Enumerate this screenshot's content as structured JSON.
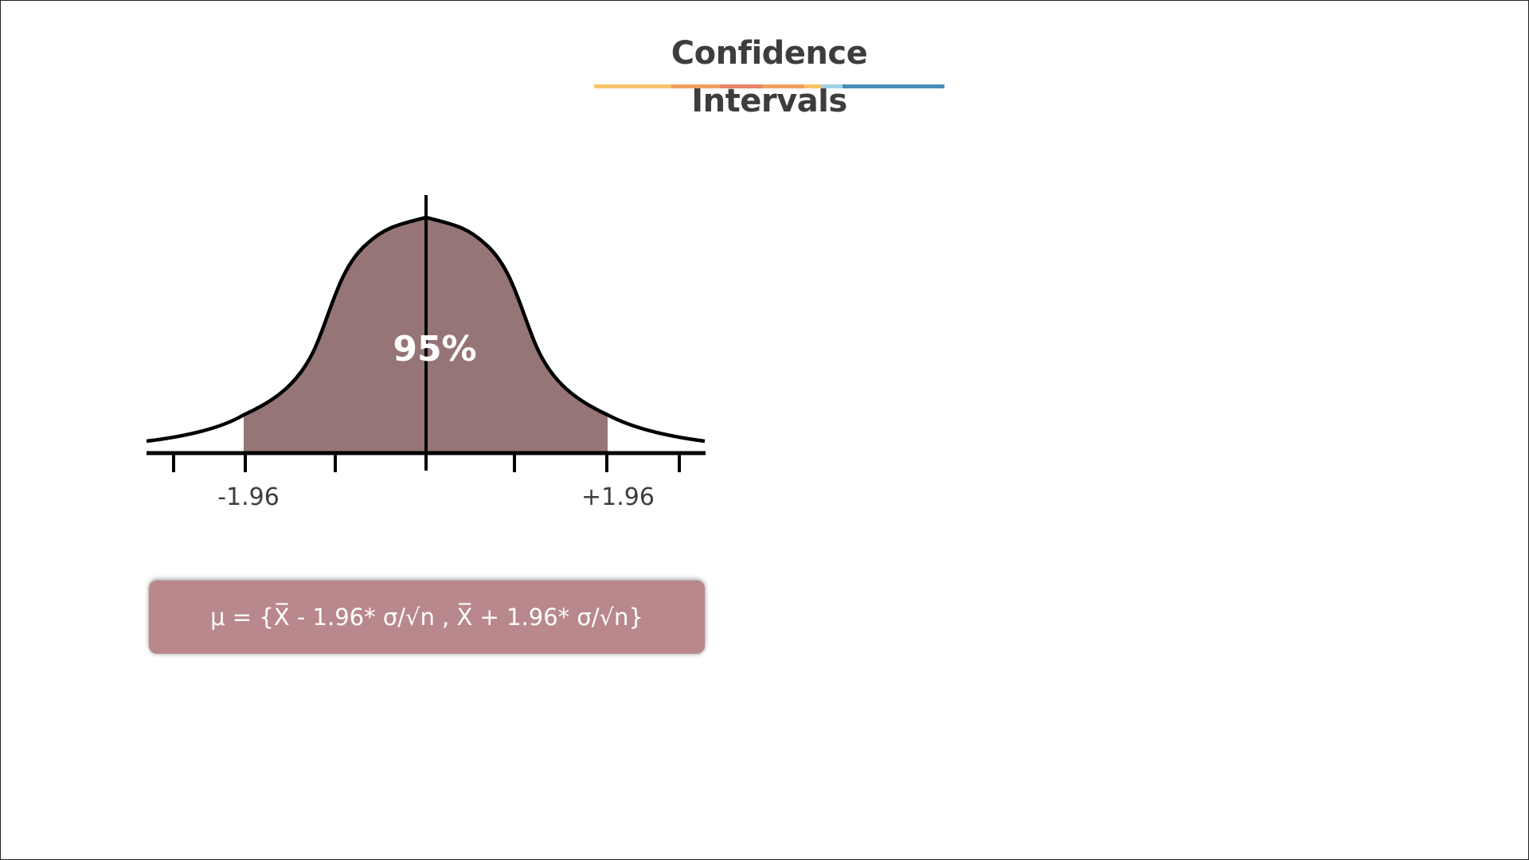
{
  "slide": {
    "title": "Confidence Intervals",
    "title_color": "#3d3d3d",
    "underline_colors": [
      "#f7c46a",
      "#f0a060",
      "#e8836a",
      "#f0a060",
      "#f7c46a",
      "#9dd2e6",
      "#4a8db7"
    ]
  },
  "diagram": {
    "center_label": "95%",
    "left_bound_label": "-1.96",
    "right_bound_label": "+1.96",
    "fill_color": "#957575",
    "line_color": "#000000",
    "label_color": "#3d3d3d",
    "center_label_color": "#ffffff"
  },
  "formula": {
    "text": "μ = {X̅ - 1.96* σ/√n , X̅ + 1.96* σ/√n}",
    "box_color": "#b9888c",
    "text_color": "#ffffff"
  }
}
